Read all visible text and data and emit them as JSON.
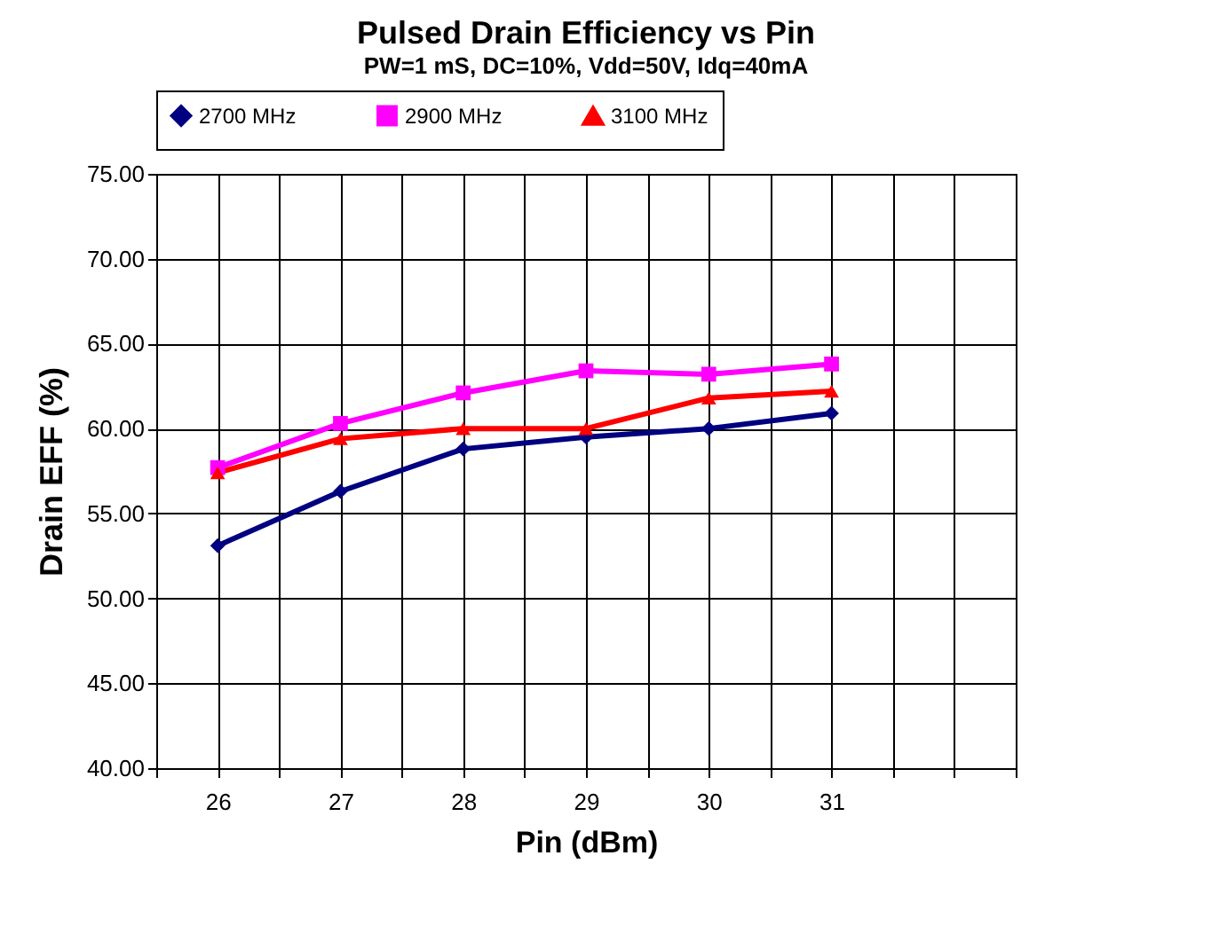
{
  "chart_data": {
    "type": "line",
    "title": "Pulsed Drain Efficiency vs Pin",
    "subtitle": "PW=1 mS, DC=10%, Vdd=50V, Idq=40mA",
    "xlabel": "Pin (dBm)",
    "ylabel": "Drain EFF (%)",
    "x": [
      26,
      27,
      28,
      29,
      30,
      31
    ],
    "series": [
      {
        "name": "2700 MHz",
        "color": "#000080",
        "marker": "diamond",
        "values": [
          53.1,
          56.3,
          58.8,
          59.5,
          60.0,
          60.9
        ]
      },
      {
        "name": "2900 MHz",
        "color": "#ff00ff",
        "marker": "square",
        "values": [
          57.7,
          60.3,
          62.1,
          63.4,
          63.2,
          63.8
        ]
      },
      {
        "name": "3100 MHz",
        "color": "#ff0000",
        "marker": "triangle",
        "values": [
          57.4,
          59.4,
          60.0,
          60.0,
          61.8,
          62.2
        ]
      }
    ],
    "xlim": [
      25.5,
      32.5
    ],
    "xticks": [
      {
        "value": 25.5,
        "label": null
      },
      26,
      {
        "value": 26.5,
        "label": null
      },
      27,
      {
        "value": 27.5,
        "label": null
      },
      28,
      {
        "value": 28.5,
        "label": null
      },
      29,
      {
        "value": 29.5,
        "label": null
      },
      30,
      {
        "value": 30.5,
        "label": null
      },
      31,
      {
        "value": 31.5,
        "label": null
      },
      {
        "value": 32,
        "label": null
      },
      {
        "value": 32.5,
        "label": null
      }
    ],
    "ylim": [
      40,
      75
    ],
    "yticks": [
      {
        "value": 40,
        "label": "40.00"
      },
      {
        "value": 45,
        "label": "45.00"
      },
      {
        "value": 50,
        "label": "50.00"
      },
      {
        "value": 55,
        "label": "55.00"
      },
      {
        "value": 60,
        "label": "60.00"
      },
      {
        "value": 65,
        "label": "65.00"
      },
      {
        "value": 70,
        "label": "70.00"
      },
      {
        "value": 75,
        "label": "75.00"
      }
    ],
    "grid": true,
    "legend": "top",
    "line_style": "solid"
  }
}
